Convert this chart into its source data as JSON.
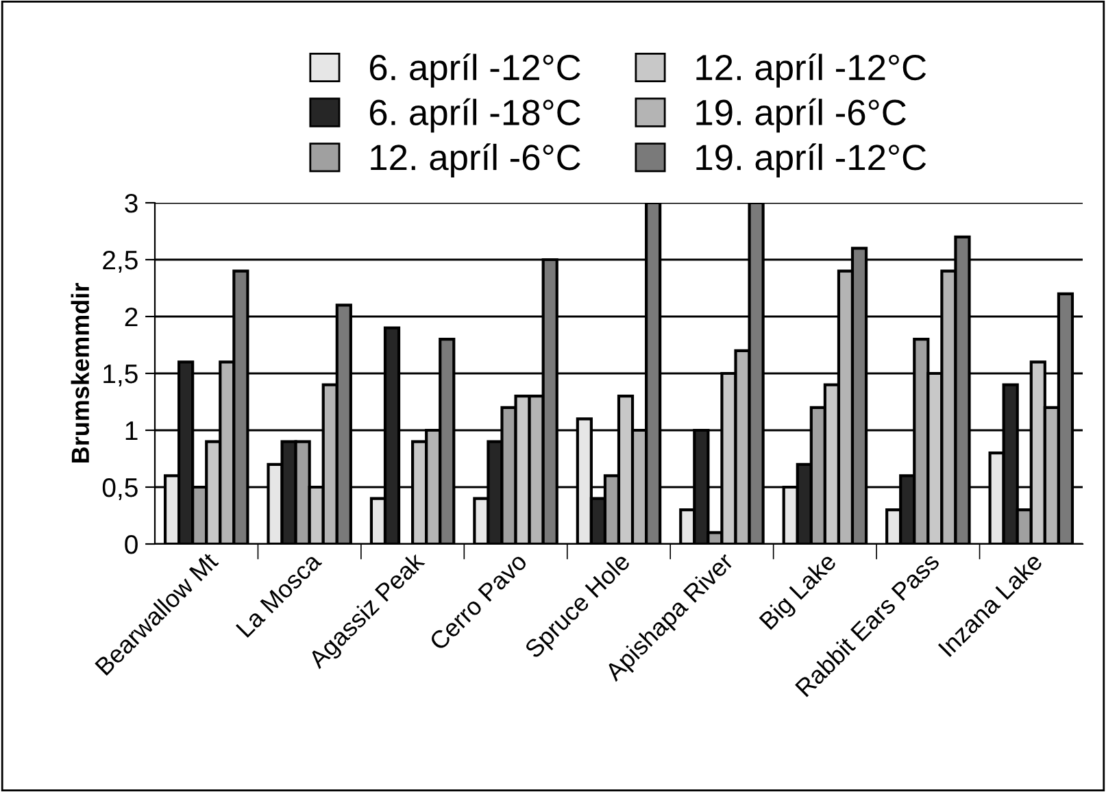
{
  "chart_data": {
    "type": "bar",
    "ylabel": "Brumskemmdir",
    "categories": [
      "Bearwallow Mt",
      "La Mosca",
      "Agassiz Peak",
      "Cerro Pavo",
      "Spruce Hole",
      "Apishapa River",
      "Big Lake",
      "Rabbit Ears Pass",
      "Inzana Lake"
    ],
    "series": [
      {
        "name": "6. apríl -12°C",
        "color": "#e6e6e6",
        "values": [
          0.6,
          0.7,
          0.4,
          0.4,
          1.1,
          0.3,
          0.5,
          0.3,
          0.8
        ]
      },
      {
        "name": "6. apríl -18°C",
        "color": "#262626",
        "values": [
          1.6,
          0.9,
          1.9,
          0.9,
          0.4,
          1.0,
          0.7,
          0.6,
          1.4
        ]
      },
      {
        "name": "12. apríl -6°C",
        "color": "#a0a0a0",
        "values": [
          0.5,
          0.9,
          null,
          1.2,
          0.6,
          0.1,
          1.2,
          1.8,
          0.3
        ]
      },
      {
        "name": "12. apríl -12°C",
        "color": "#c8c8c8",
        "values": [
          0.9,
          0.5,
          0.9,
          1.3,
          1.3,
          1.5,
          1.4,
          1.5,
          1.6
        ]
      },
      {
        "name": "19. apríl -6°C",
        "color": "#b4b4b4",
        "values": [
          1.6,
          1.4,
          1.0,
          1.3,
          1.0,
          1.7,
          2.4,
          2.4,
          1.2
        ]
      },
      {
        "name": "19. apríl -12°C",
        "color": "#7a7a7a",
        "values": [
          2.4,
          2.1,
          1.8,
          2.5,
          3.0,
          3.0,
          2.6,
          2.7,
          2.2
        ]
      }
    ],
    "ylim": [
      0,
      3
    ],
    "yticks": [
      0,
      {
        "value": 0.5,
        "label": "0,5"
      },
      1,
      {
        "value": 1.5,
        "label": "1,5"
      },
      2,
      {
        "value": 2.5,
        "label": "2,5"
      },
      3
    ],
    "grid": "y",
    "legend": "top"
  }
}
